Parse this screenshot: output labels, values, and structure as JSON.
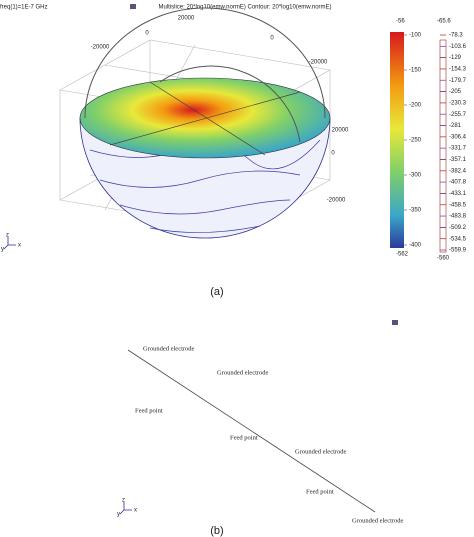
{
  "panel_a": {
    "header": "freq(1)=1E-7 GHz",
    "plot_title": "Multislice: 20*log10(emw.normE)  Contour: 20*log10(emw.normE)",
    "axis_labels": [
      "-20000",
      "0",
      "20000",
      "0",
      "-20000",
      "20000",
      "0",
      "-20000"
    ],
    "colorbar_main": {
      "max": "-56",
      "ticks": [
        "-100",
        "-150",
        "-200",
        "-250",
        "-300",
        "-350",
        "-400"
      ],
      "min": "-562"
    },
    "colorbar_contour": {
      "max": "-65.6",
      "ticks": [
        "-78.3",
        "-103.6",
        "-129",
        "-154.3",
        "-179.7",
        "-205",
        "-230.3",
        "-255.7",
        "-281",
        "-306.4",
        "-331.7",
        "-357.1",
        "-382.4",
        "-407.8",
        "-433.1",
        "-458.5",
        "-483.8",
        "-509.2",
        "-534.5",
        "-559.9"
      ],
      "min": "-560"
    },
    "triad": [
      "z",
      "y",
      "x"
    ],
    "caption": "(a)"
  },
  "panel_b": {
    "labels": [
      "Grounded electrode",
      "Feed point",
      "Grounded electrode",
      "Feed point",
      "Grounded electrode",
      "Feed point",
      "Grounded electrode"
    ],
    "triad": [
      "z",
      "y",
      "x"
    ],
    "caption": "(b)"
  }
}
